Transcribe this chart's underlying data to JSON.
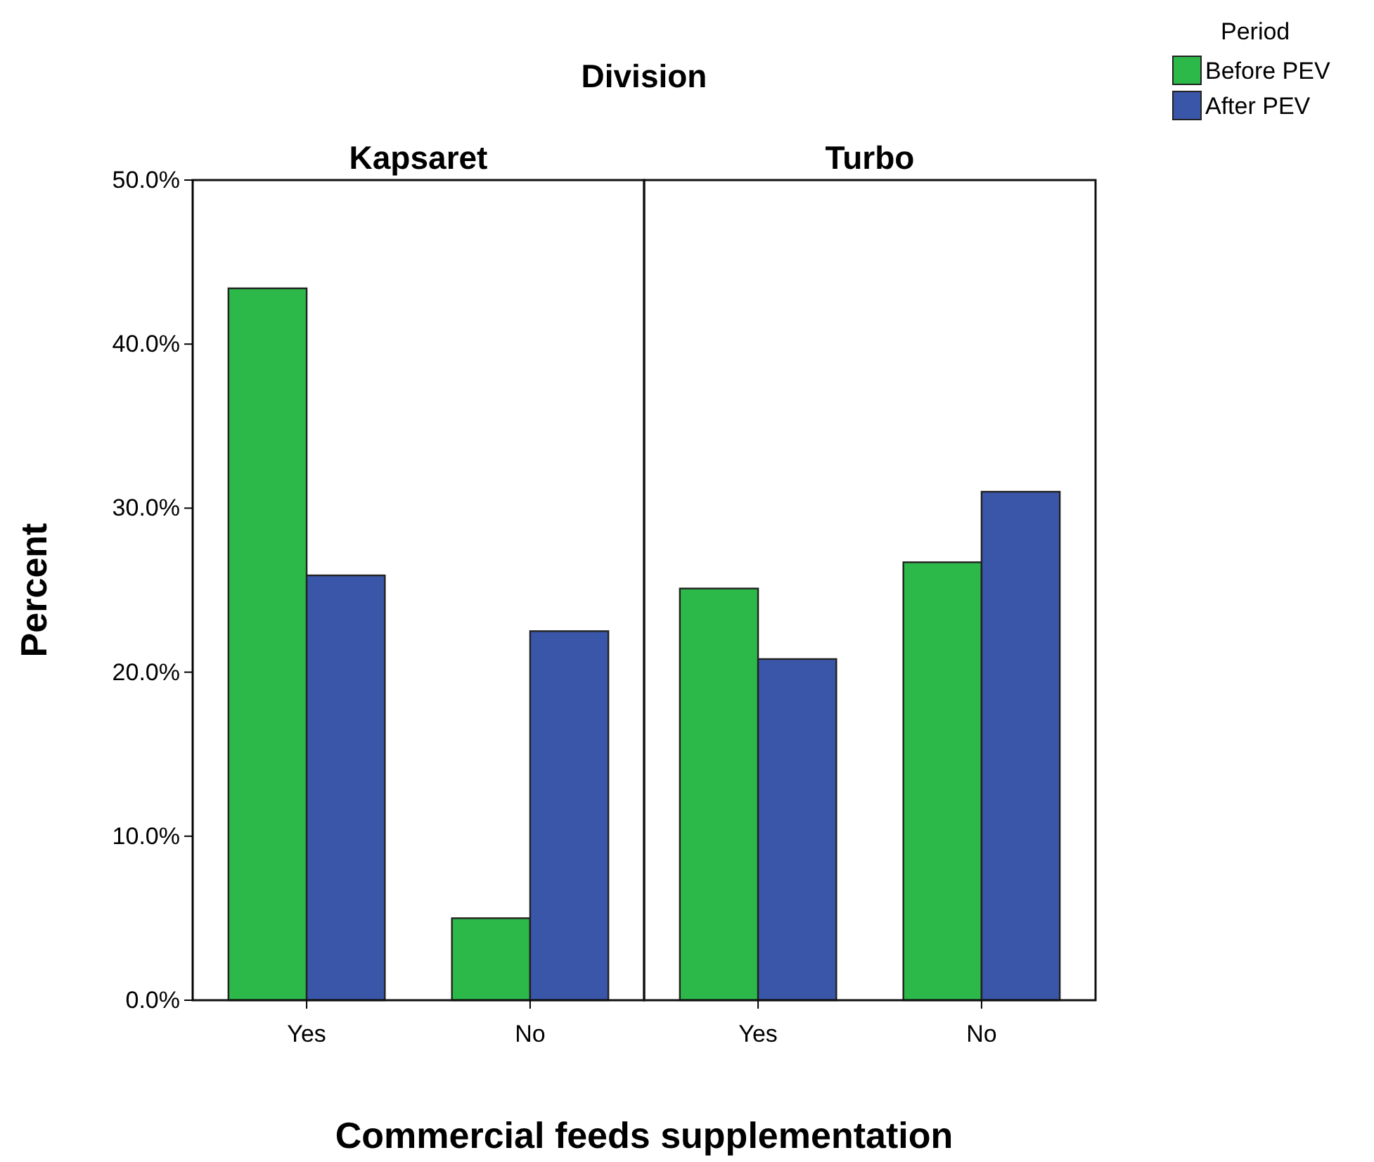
{
  "chart_data": [
    {
      "type": "bar",
      "title": "Kapsaret",
      "xlabel": "Commercial feeds supplementation",
      "ylabel": "Percent",
      "annotations": [
        "Division"
      ],
      "categories": [
        "Yes",
        "No"
      ],
      "legend_title": "Period",
      "legend": "top right",
      "series": [
        {
          "name": "Before PEV",
          "color": "#2db84a",
          "values": [
            43.4,
            5.0
          ]
        },
        {
          "name": "After PEV",
          "color": "#3a56a8",
          "values": [
            25.9,
            22.5
          ]
        }
      ],
      "ylim": [
        0,
        50
      ],
      "yticks": [
        {
          "value": 0,
          "label": "0.0%"
        },
        {
          "value": 10,
          "label": "10.0%"
        },
        {
          "value": 20,
          "label": "20.0%"
        },
        {
          "value": 30,
          "label": "30.0%"
        },
        {
          "value": 40,
          "label": "40.0%"
        },
        {
          "value": 50,
          "label": "50.0%"
        }
      ],
      "grid": false
    },
    {
      "type": "bar",
      "title": "Turbo",
      "categories": [
        "Yes",
        "No"
      ],
      "tick_labels": "x",
      "series": [
        {
          "color": "#2db84a",
          "values": [
            25.1,
            26.7
          ]
        },
        {
          "color": "#3a56a8",
          "values": [
            20.8,
            31.0
          ]
        }
      ],
      "ylim": [
        0,
        50
      ],
      "grid": false
    }
  ]
}
